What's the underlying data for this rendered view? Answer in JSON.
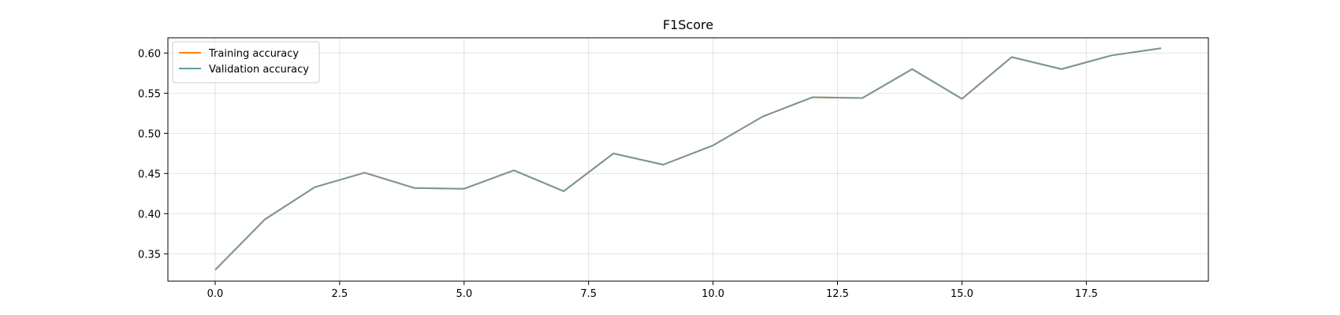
{
  "chart_data": {
    "type": "line",
    "title": "F1Score",
    "xlabel": "",
    "ylabel": "",
    "xlim": [
      -0.95,
      19.95
    ],
    "ylim": [
      0.316,
      0.619
    ],
    "x_ticks": [
      0.0,
      2.5,
      5.0,
      7.5,
      10.0,
      12.5,
      15.0,
      17.5
    ],
    "x_tick_labels": [
      "0.0",
      "2.5",
      "5.0",
      "7.5",
      "10.0",
      "12.5",
      "15.0",
      "17.5"
    ],
    "y_ticks": [
      0.35,
      0.4,
      0.45,
      0.5,
      0.55,
      0.6
    ],
    "y_tick_labels": [
      "0.35",
      "0.40",
      "0.45",
      "0.50",
      "0.55",
      "0.60"
    ],
    "grid": true,
    "legend_position": "top-left",
    "x": [
      0,
      1,
      2,
      3,
      4,
      5,
      6,
      7,
      8,
      9,
      10,
      11,
      12,
      13,
      14,
      15,
      16,
      17,
      18,
      19
    ],
    "series": [
      {
        "name": "Training accuracy",
        "color": "#ff7f0e",
        "values": [
          0.33,
          0.393,
          0.433,
          0.451,
          0.432,
          0.431,
          0.454,
          0.428,
          0.475,
          0.461,
          0.485,
          0.521,
          0.545,
          0.544,
          0.58,
          0.543,
          0.595,
          0.58,
          0.597,
          0.606
        ]
      },
      {
        "name": "Validation accuracy",
        "color": "#5f9ea0",
        "values": [
          0.33,
          0.393,
          0.433,
          0.451,
          0.432,
          0.431,
          0.454,
          0.428,
          0.475,
          0.461,
          0.485,
          0.521,
          0.545,
          0.544,
          0.58,
          0.543,
          0.595,
          0.58,
          0.597,
          0.606
        ]
      }
    ]
  }
}
